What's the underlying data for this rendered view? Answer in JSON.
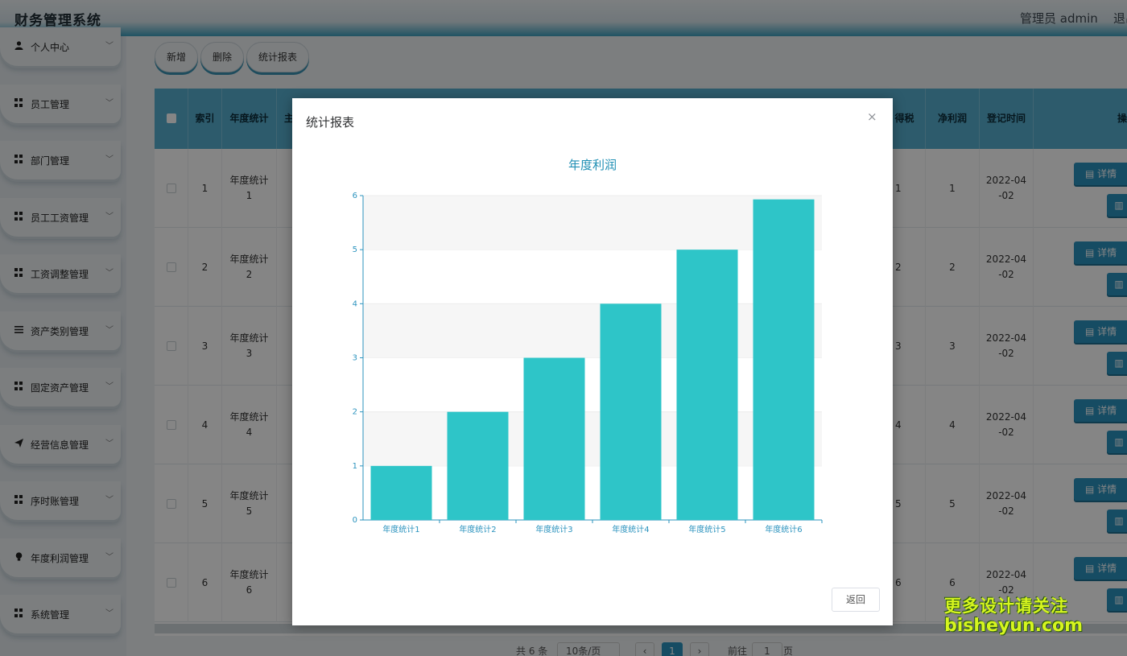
{
  "header": {
    "title": "财务管理系统",
    "user": "管理员 admin",
    "logout": "退出"
  },
  "sidebar": {
    "items": [
      {
        "label": "个人中心",
        "icon": "user-icon"
      },
      {
        "label": "员工管理",
        "icon": "grid-icon"
      },
      {
        "label": "部门管理",
        "icon": "grid-icon"
      },
      {
        "label": "员工工资管理",
        "icon": "grid-icon"
      },
      {
        "label": "工资调整管理",
        "icon": "grid-icon"
      },
      {
        "label": "资产类别管理",
        "icon": "list-icon"
      },
      {
        "label": "固定资产管理",
        "icon": "grid-icon"
      },
      {
        "label": "经营信息管理",
        "icon": "send-icon"
      },
      {
        "label": "序时账管理",
        "icon": "grid-icon"
      },
      {
        "label": "年度利润管理",
        "icon": "bulb-icon"
      },
      {
        "label": "系统管理",
        "icon": "grid-icon"
      }
    ]
  },
  "toolbar": {
    "add_label": "新增",
    "delete_label": "删除",
    "report_label": "统计报表"
  },
  "table": {
    "headers": [
      "索引",
      "年度统计",
      "主",
      "得税",
      "净利润",
      "登记时间",
      "操"
    ],
    "rows": [
      {
        "index": "1",
        "name_line1": "年度统计",
        "name_line2": "1",
        "tax": "1",
        "profit": "1",
        "date_line1": "2022-04",
        "date_line2": "-02"
      },
      {
        "index": "2",
        "name_line1": "年度统计",
        "name_line2": "2",
        "tax": "2",
        "profit": "2",
        "date_line1": "2022-04",
        "date_line2": "-02"
      },
      {
        "index": "3",
        "name_line1": "年度统计",
        "name_line2": "3",
        "tax": "3",
        "profit": "3",
        "date_line1": "2022-04",
        "date_line2": "-02"
      },
      {
        "index": "4",
        "name_line1": "年度统计",
        "name_line2": "4",
        "tax": "4",
        "profit": "4",
        "date_line1": "2022-04",
        "date_line2": "-02"
      },
      {
        "index": "5",
        "name_line1": "年度统计",
        "name_line2": "5",
        "tax": "5",
        "profit": "5",
        "date_line1": "2022-04",
        "date_line2": "-02"
      },
      {
        "index": "6",
        "name_line1": "年度统计",
        "name_line2": "6",
        "tax": "6",
        "profit": "6",
        "date_line1": "2022-04",
        "date_line2": "-02"
      }
    ],
    "detail_label": "详情"
  },
  "pager": {
    "total": "共 6 条",
    "page_size": "10条/页",
    "current_page": "1",
    "goto_label": "前往",
    "goto_value": "1",
    "page_unit": "页"
  },
  "dialog": {
    "title": "统计报表",
    "close": "×",
    "back_label": "返回"
  },
  "chart_data": {
    "type": "bar",
    "title": "年度利润",
    "categories": [
      "年度统计1",
      "年度统计2",
      "年度统计3",
      "年度统计4",
      "年度统计5",
      "年度统计6"
    ],
    "values": [
      1,
      2,
      3,
      4,
      5,
      5.93
    ],
    "yticks": [
      "0",
      "1",
      "2",
      "3",
      "4",
      "5",
      "6"
    ],
    "ylim": [
      0,
      6
    ],
    "grid": true,
    "bar_color": "#2ec5c8",
    "axis_color": "#2b93be"
  },
  "watermark": {
    "line1": "更多设计请关注",
    "line2": "bisheyun.com"
  },
  "colors": {
    "accent": "#2b93be",
    "header_bg": "#56aecf"
  }
}
